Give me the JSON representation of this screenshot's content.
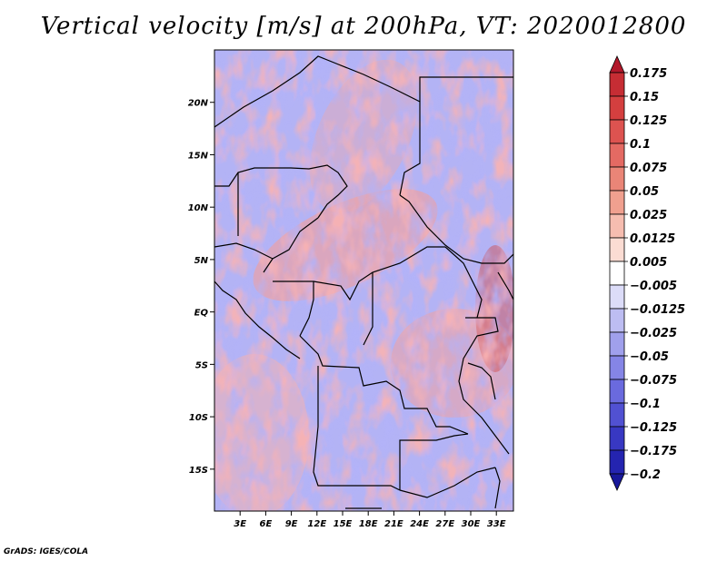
{
  "title": "Vertical velocity [m/s] at 200hPa, VT: 2020012800",
  "credit": "GrADS: IGES/COLA",
  "map": {
    "lat_labels": [
      "20N",
      "15N",
      "10N",
      "5N",
      "EQ",
      "5S",
      "10S",
      "15S"
    ],
    "lat_values": [
      20,
      15,
      10,
      5,
      0,
      -5,
      -10,
      -15
    ],
    "lon_labels": [
      "3E",
      "6E",
      "9E",
      "12E",
      "15E",
      "18E",
      "21E",
      "24E",
      "27E",
      "30E",
      "33E"
    ],
    "lon_values": [
      3,
      6,
      9,
      12,
      15,
      18,
      21,
      24,
      27,
      30,
      33
    ],
    "lat_range": [
      -19,
      25
    ],
    "lon_range": [
      0,
      35
    ]
  },
  "colorbar": {
    "labels": [
      "0.175",
      "0.15",
      "0.125",
      "0.1",
      "0.075",
      "0.05",
      "0.025",
      "0.0125",
      "0.005",
      "−0.005",
      "−0.0125",
      "−0.025",
      "−0.05",
      "−0.075",
      "−0.1",
      "−0.125",
      "−0.175",
      "−0.2"
    ],
    "colors": [
      "#b2182b",
      "#c62d34",
      "#d43f3f",
      "#dd5350",
      "#e46a63",
      "#ea8577",
      "#f0a08f",
      "#f6bdb0",
      "#fbdcd3",
      "#ffffff",
      "#dcdcf8",
      "#bdbdf2",
      "#a0a0ec",
      "#8585e6",
      "#6a6ade",
      "#5151d2",
      "#3838c2",
      "#2424b0",
      "#18189a"
    ]
  }
}
